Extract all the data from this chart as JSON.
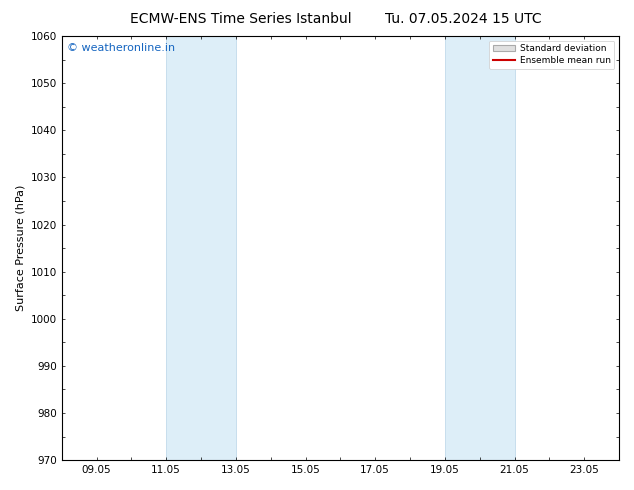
{
  "title_left": "ECMW-ENS Time Series Istanbul",
  "title_right": "Tu. 07.05.2024 15 UTC",
  "ylabel": "Surface Pressure (hPa)",
  "ylim": [
    970,
    1060
  ],
  "yticks": [
    970,
    980,
    990,
    1000,
    1010,
    1020,
    1030,
    1040,
    1050,
    1060
  ],
  "xtick_labels": [
    "09.05",
    "11.05",
    "13.05",
    "15.05",
    "17.05",
    "19.05",
    "21.05",
    "23.05"
  ],
  "xtick_positions": [
    1,
    3,
    5,
    7,
    9,
    11,
    13,
    15
  ],
  "xlim": [
    0,
    16
  ],
  "shaded_regions": [
    {
      "x_start": 3,
      "x_end": 5
    },
    {
      "x_start": 11,
      "x_end": 13
    }
  ],
  "shaded_color": "#ddeef8",
  "shaded_edge_color": "#b8d4e8",
  "watermark_text": "© weatheronline.in",
  "watermark_color": "#1565C0",
  "watermark_fontsize": 8,
  "legend_std_label": "Standard deviation",
  "legend_mean_label": "Ensemble mean run",
  "legend_std_facecolor": "#e0e0e0",
  "legend_std_edgecolor": "#aaaaaa",
  "legend_mean_color": "#cc0000",
  "title_fontsize": 10,
  "axis_fontsize": 7.5,
  "ylabel_fontsize": 8,
  "background_color": "#ffffff",
  "plot_bg_color": "#ffffff",
  "spine_color": "#000000",
  "tick_color": "#000000"
}
